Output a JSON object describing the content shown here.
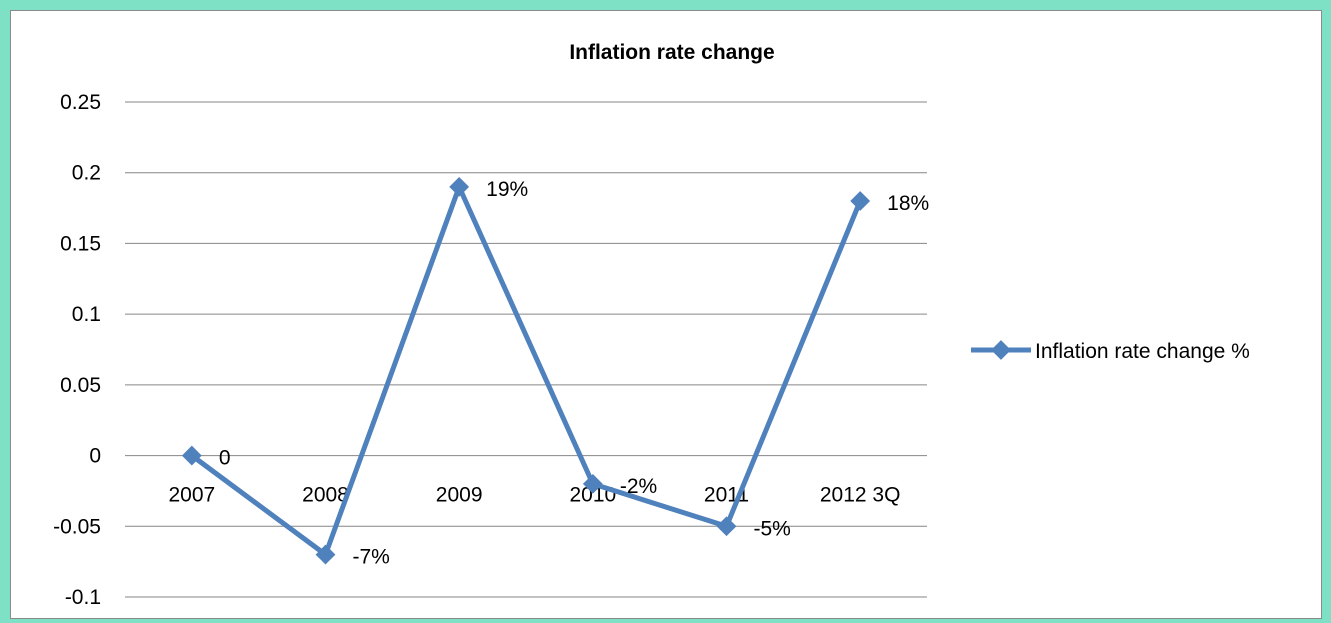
{
  "chart_data": {
    "type": "line",
    "title": "Inflation rate change",
    "xlabel": "",
    "ylabel": "",
    "categories": [
      "2007",
      "2008",
      "2009",
      "2010",
      "2011",
      "2012 3Q"
    ],
    "series": [
      {
        "name": "Inflation rate change %",
        "values": [
          0,
          -0.07,
          0.19,
          -0.02,
          -0.05,
          0.18
        ],
        "data_labels": [
          "0",
          "-7%",
          "19%",
          "-2%",
          "-5%",
          "18%"
        ],
        "color": "#4f81bd"
      }
    ],
    "y_ticks": [
      "0.25",
      "0.2",
      "0.15",
      "0.1",
      "0.05",
      "0",
      "-0.05",
      "-0.1"
    ],
    "ylim": [
      -0.1,
      0.25
    ],
    "grid": true,
    "legend_position": "right"
  },
  "colors": {
    "background": "#7ee0c4",
    "plot_background": "#ffffff",
    "gridline": "#868686",
    "series": "#4f81bd"
  }
}
